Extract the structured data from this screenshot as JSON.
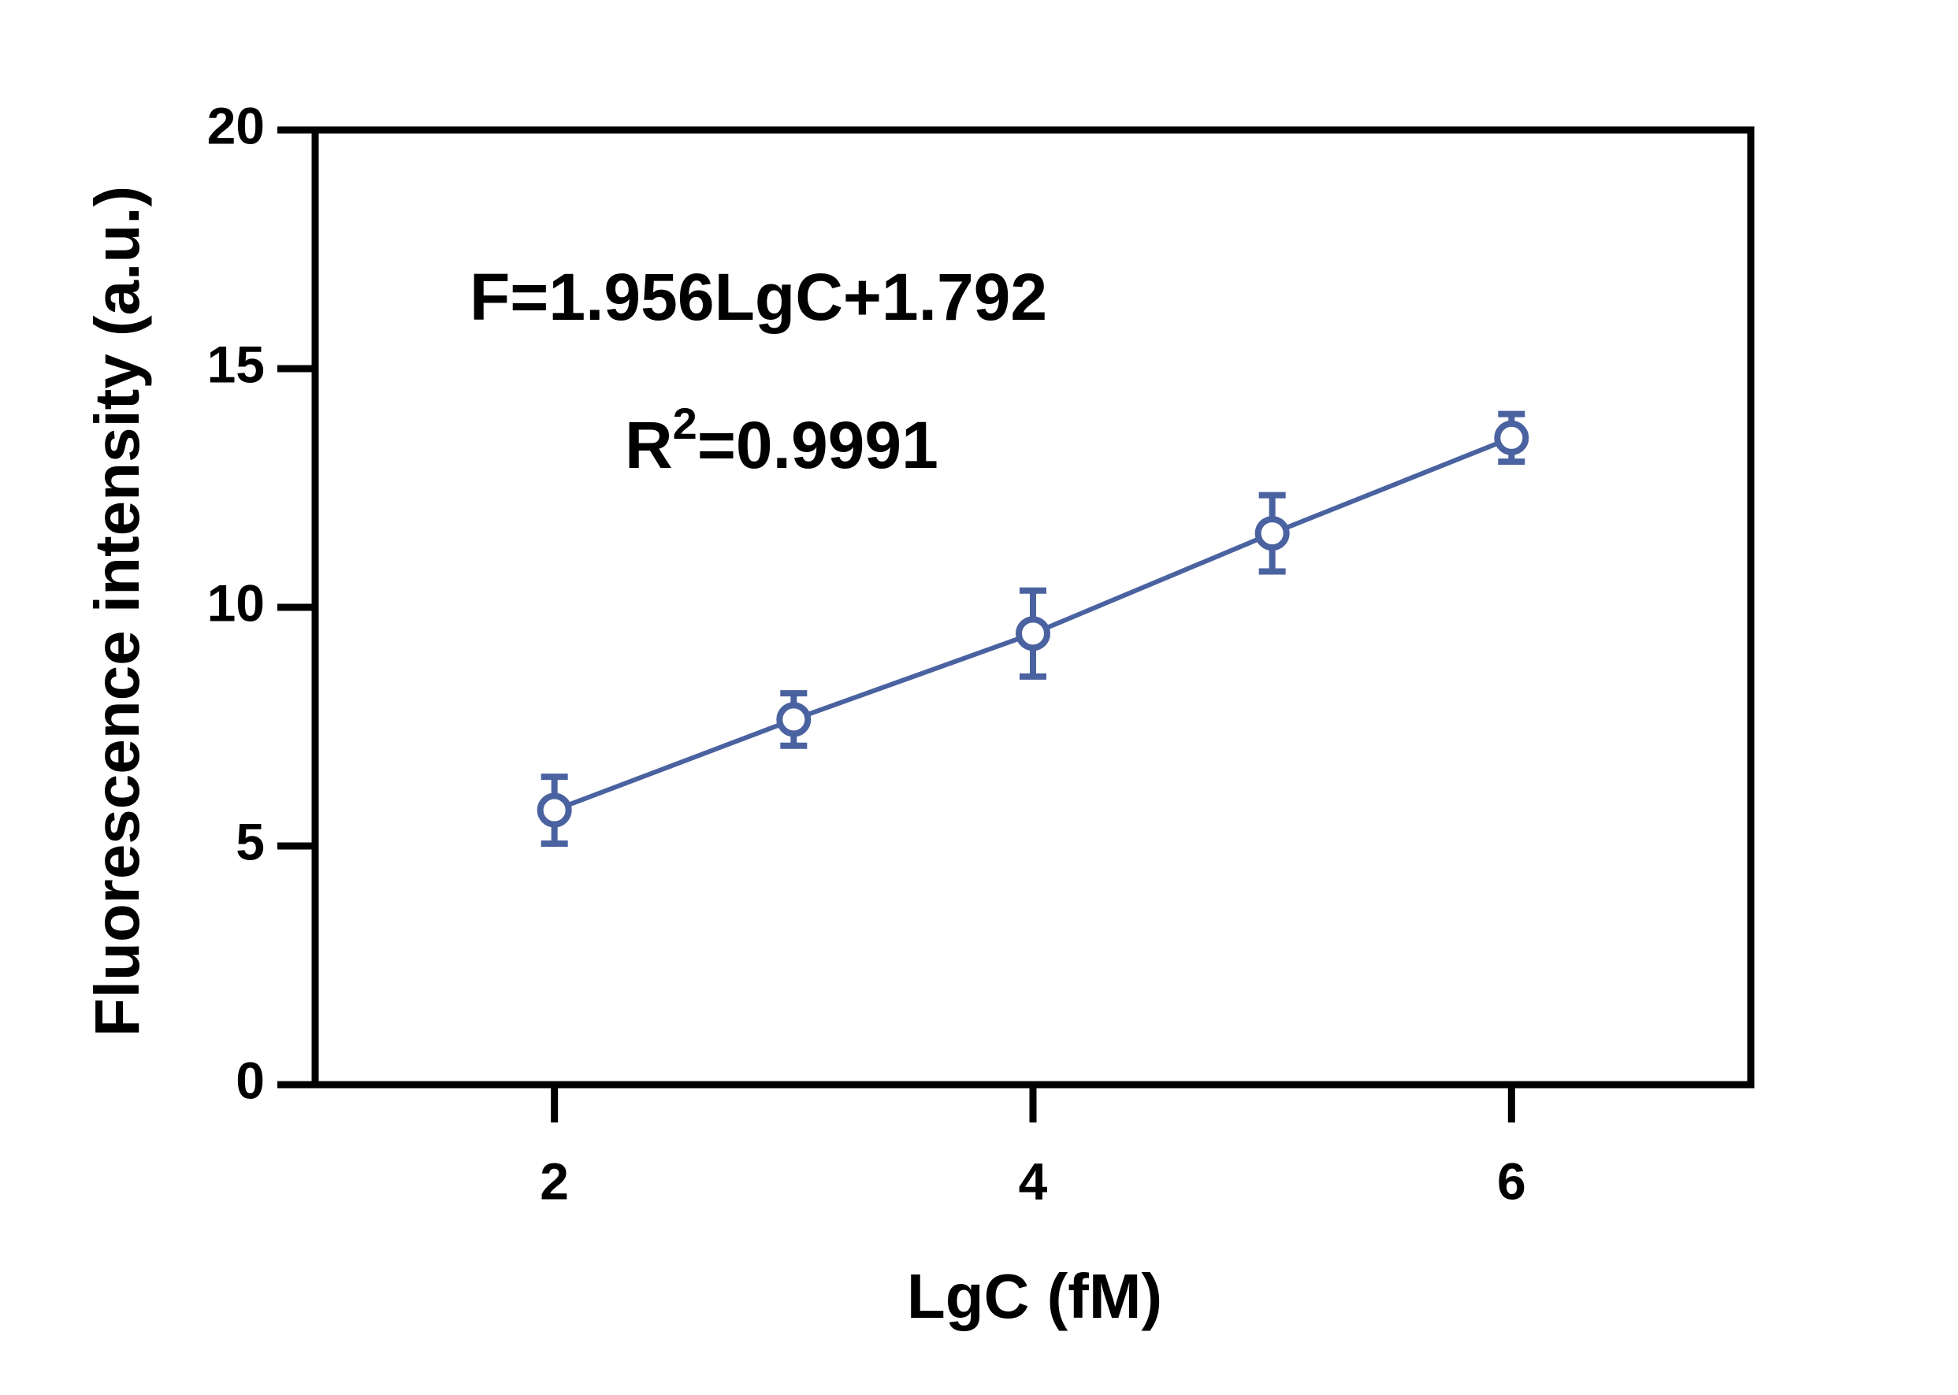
{
  "chart_data": {
    "type": "line",
    "xlabel": "LgC (fM)",
    "ylabel": "Fluorescence intensity (a.u.)",
    "annotations": [
      "F=1.956LgC+1.792",
      {
        "text": "R",
        "sup": "2",
        "rest": "=0.9991"
      }
    ],
    "x": [
      2,
      3,
      4,
      5,
      6
    ],
    "series": [
      {
        "color": "#4a62a0",
        "values": [
          5.75,
          7.65,
          9.45,
          11.55,
          13.55
        ],
        "errors": [
          0.7,
          0.55,
          0.9,
          0.8,
          0.5
        ]
      }
    ],
    "xlim": [
      1,
      7
    ],
    "xticks": [
      2,
      4,
      6
    ],
    "ylim": [
      0,
      20
    ],
    "yticks": [
      0,
      5,
      10,
      15,
      20
    ]
  }
}
